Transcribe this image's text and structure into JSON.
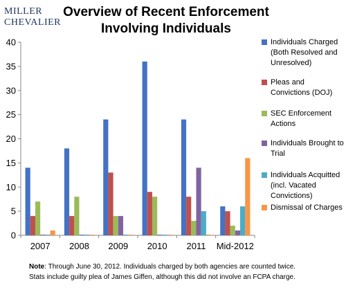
{
  "logo": {
    "line1": "MILLER",
    "line2": "CHEVALIER"
  },
  "title_lines": [
    "Overview of Recent Enforcement",
    "Involving Individuals"
  ],
  "note": {
    "label": "Note",
    "line1": ": Through June 30, 2012.  Individuals charged by both agencies are counted twice.",
    "line2": "Stats include  guilty plea of James Giffen, although this did not involve an FCPA charge."
  },
  "chart_data": {
    "type": "bar",
    "categories": [
      "2007",
      "2008",
      "2009",
      "2010",
      "2011",
      "Mid-2012"
    ],
    "ylim": [
      0,
      40
    ],
    "yticks": [
      0,
      5,
      10,
      15,
      20,
      25,
      30,
      35,
      40
    ],
    "grid": false,
    "legend_position": "right",
    "series": [
      {
        "name": "Individuals Charged (Both Resolved and Unresolved)",
        "color": "#4472c4",
        "values": [
          14,
          18,
          24,
          36,
          24,
          6
        ]
      },
      {
        "name": "Pleas and Convictions (DOJ)",
        "color": "#c0504d",
        "values": [
          4,
          4,
          13,
          9,
          8,
          5
        ]
      },
      {
        "name": "SEC Enforcement Actions",
        "color": "#9bbb59",
        "values": [
          7,
          8,
          4,
          8,
          3,
          2
        ]
      },
      {
        "name": "Individuals Brought to Trial",
        "color": "#8064a2",
        "values": [
          0,
          0,
          4,
          0,
          14,
          1
        ]
      },
      {
        "name": "Individuals Acquitted (incl. Vacated Convictions)",
        "color": "#4bacc6",
        "values": [
          0,
          0,
          0,
          0,
          5,
          6
        ]
      },
      {
        "name": "Dismissal of Charges",
        "color": "#f79646",
        "values": [
          1,
          0,
          0,
          0,
          0,
          16
        ]
      }
    ]
  }
}
